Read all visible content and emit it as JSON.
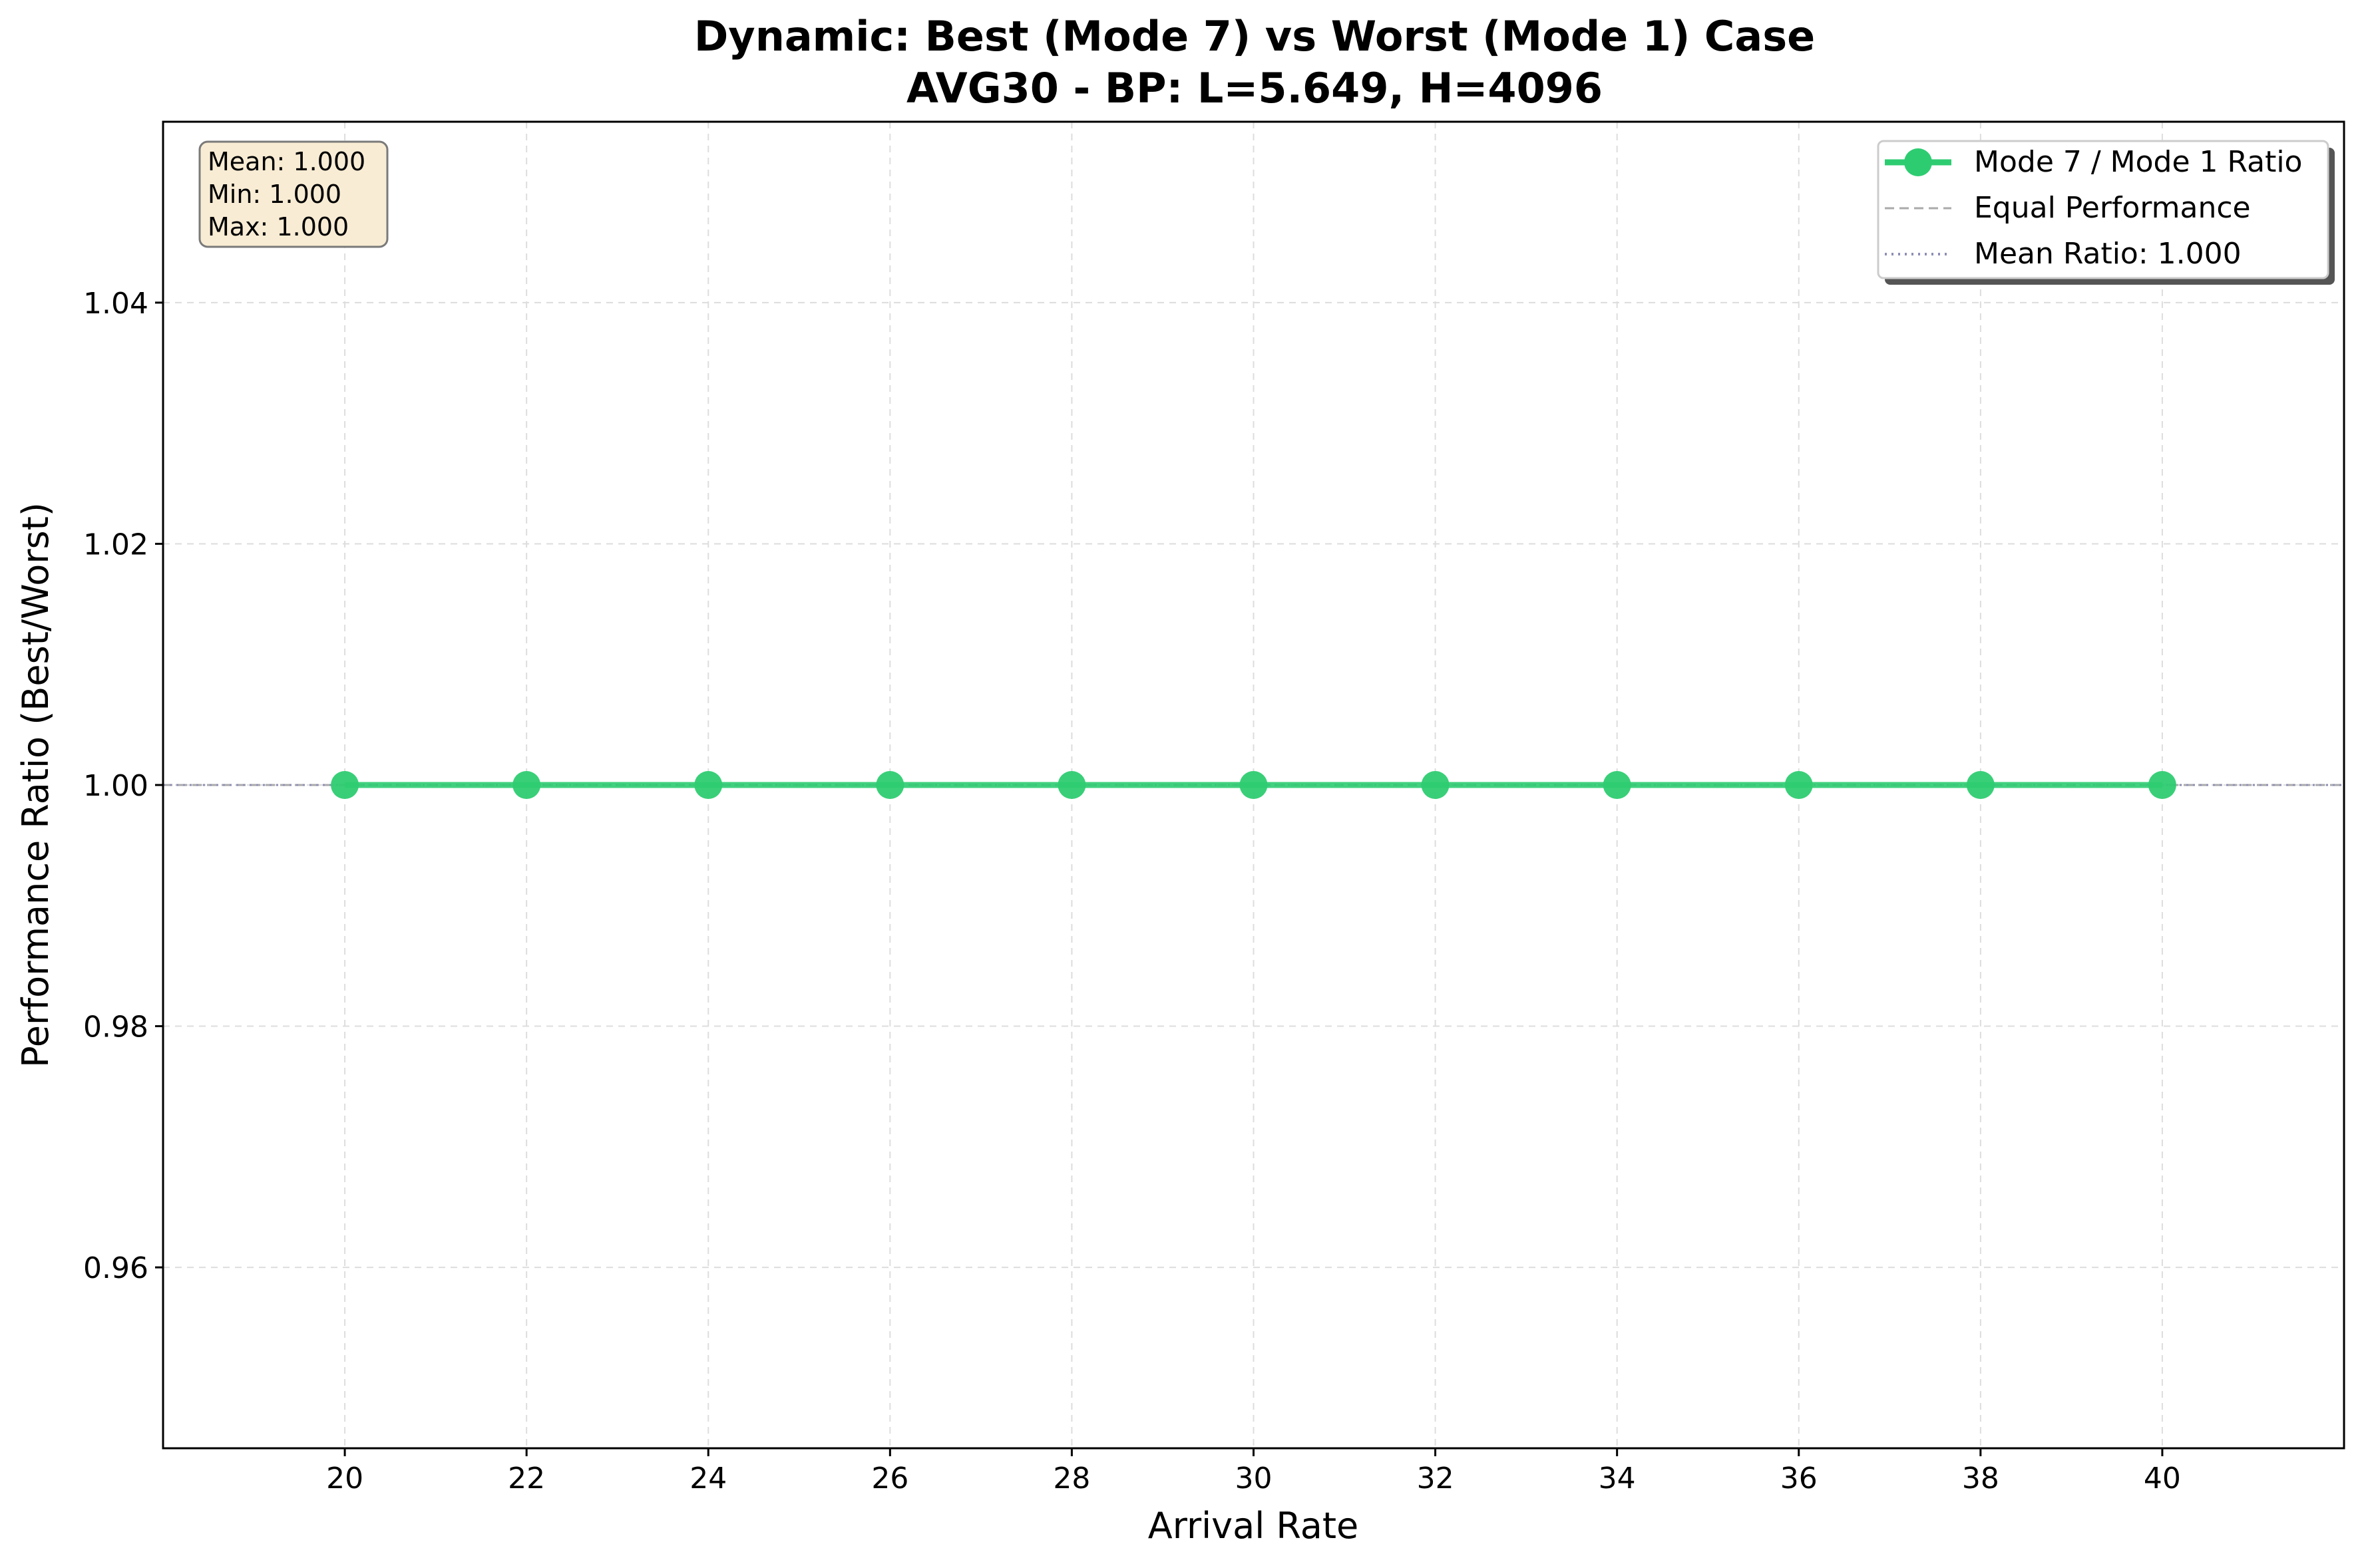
{
  "chart_data": {
    "type": "line",
    "title": "Dynamic: Best (Mode 7) vs Worst (Mode 1) Case",
    "subtitle": "AVG30 - BP: L=5.649, H=4096",
    "xlabel": "Arrival Rate",
    "ylabel": "Performance Ratio (Best/Worst)",
    "xlim": [
      18.0,
      42.0
    ],
    "ylim": [
      0.945,
      1.055
    ],
    "xticks": [
      20,
      22,
      24,
      26,
      28,
      30,
      32,
      34,
      36,
      38,
      40
    ],
    "xtick_labels": [
      "20",
      "22",
      "24",
      "26",
      "28",
      "30",
      "32",
      "34",
      "36",
      "38",
      "40"
    ],
    "yticks": [
      0.96,
      0.98,
      1.0,
      1.02,
      1.04
    ],
    "ytick_labels": [
      "0.96",
      "0.98",
      "1.00",
      "1.02",
      "1.04"
    ],
    "grid": true,
    "legend_position": "top-right",
    "series": [
      {
        "name": "Mode 7 / Mode 1 Ratio",
        "color": "#2ecc71",
        "style": "line-marker",
        "x": [
          20,
          22,
          24,
          26,
          28,
          30,
          32,
          34,
          36,
          38,
          40
        ],
        "y": [
          1.0,
          1.0,
          1.0,
          1.0,
          1.0,
          1.0,
          1.0,
          1.0,
          1.0,
          1.0,
          1.0
        ]
      }
    ],
    "reference_lines": [
      {
        "name": "Equal Performance",
        "y": 1.0,
        "color": "#aaaaaa",
        "style": "dashed"
      },
      {
        "name": "Mean Ratio: 1.000",
        "y": 1.0,
        "color": "#8e8eb5",
        "style": "dotted"
      }
    ],
    "stats_box": {
      "mean": "Mean: 1.000",
      "min": "Min: 1.000",
      "max": "Max: 1.000",
      "background": "#f8ecd4"
    }
  }
}
